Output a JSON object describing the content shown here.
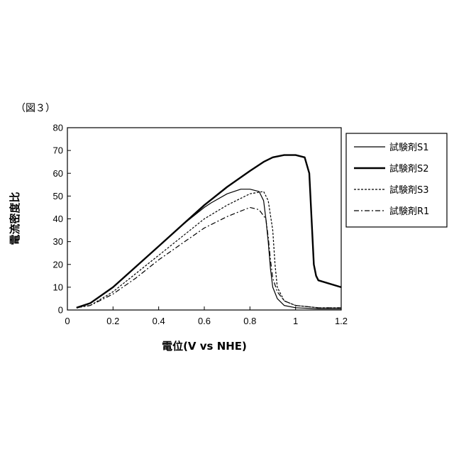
{
  "figure_caption": "（図３）",
  "chart_data": {
    "type": "line",
    "title": "",
    "xlabel": "電位(V vs NHE)",
    "ylabel": "電流密度比",
    "xlim": [
      0,
      1.2
    ],
    "ylim": [
      0,
      80
    ],
    "x_ticks": [
      "0",
      "0.2",
      "0.4",
      "0.6",
      "0.8",
      "1",
      "1.2"
    ],
    "y_ticks": [
      "0",
      "10",
      "20",
      "30",
      "40",
      "50",
      "60",
      "70",
      "80"
    ],
    "grid": false,
    "legend_position": "right",
    "series": [
      {
        "name": "試験剤S1",
        "style": "thin-solid",
        "x": [
          0.04,
          0.1,
          0.2,
          0.3,
          0.4,
          0.5,
          0.6,
          0.63,
          0.7,
          0.76,
          0.8,
          0.84,
          0.86,
          0.87,
          0.88,
          0.89,
          0.9,
          0.92,
          0.95,
          1.0,
          1.1,
          1.2
        ],
        "y": [
          1,
          3,
          10,
          19,
          28,
          37,
          45,
          47,
          51,
          53,
          53,
          52,
          48,
          40,
          30,
          18,
          10,
          5,
          2,
          1,
          0.5,
          0.5
        ]
      },
      {
        "name": "試験剤S2",
        "style": "thick-solid",
        "x": [
          0.04,
          0.1,
          0.2,
          0.3,
          0.4,
          0.5,
          0.6,
          0.7,
          0.8,
          0.86,
          0.9,
          0.95,
          1.0,
          1.04,
          1.06,
          1.07,
          1.08,
          1.09,
          1.1,
          1.2
        ],
        "y": [
          1,
          3,
          10,
          19,
          28,
          37,
          46,
          54,
          61,
          65,
          67,
          68,
          68,
          67,
          60,
          40,
          20,
          15,
          13,
          10
        ]
      },
      {
        "name": "試験剤S3",
        "style": "dashed",
        "x": [
          0.04,
          0.1,
          0.2,
          0.3,
          0.4,
          0.5,
          0.6,
          0.7,
          0.8,
          0.86,
          0.88,
          0.9,
          0.91,
          0.92,
          0.95,
          1.0,
          1.1,
          1.2
        ],
        "y": [
          1,
          2,
          8,
          16,
          24,
          32,
          40,
          46,
          51,
          52,
          48,
          35,
          20,
          10,
          4,
          2,
          1,
          1
        ]
      },
      {
        "name": "試験剤R1",
        "style": "dash-dot",
        "x": [
          0.04,
          0.1,
          0.2,
          0.3,
          0.4,
          0.5,
          0.6,
          0.7,
          0.8,
          0.84,
          0.87,
          0.88,
          0.89,
          0.9,
          0.92,
          0.95,
          1.0,
          1.1,
          1.2
        ],
        "y": [
          1,
          2,
          7,
          14,
          22,
          29,
          36,
          41,
          45,
          44,
          40,
          32,
          22,
          14,
          8,
          4,
          2,
          1,
          1
        ]
      }
    ]
  }
}
